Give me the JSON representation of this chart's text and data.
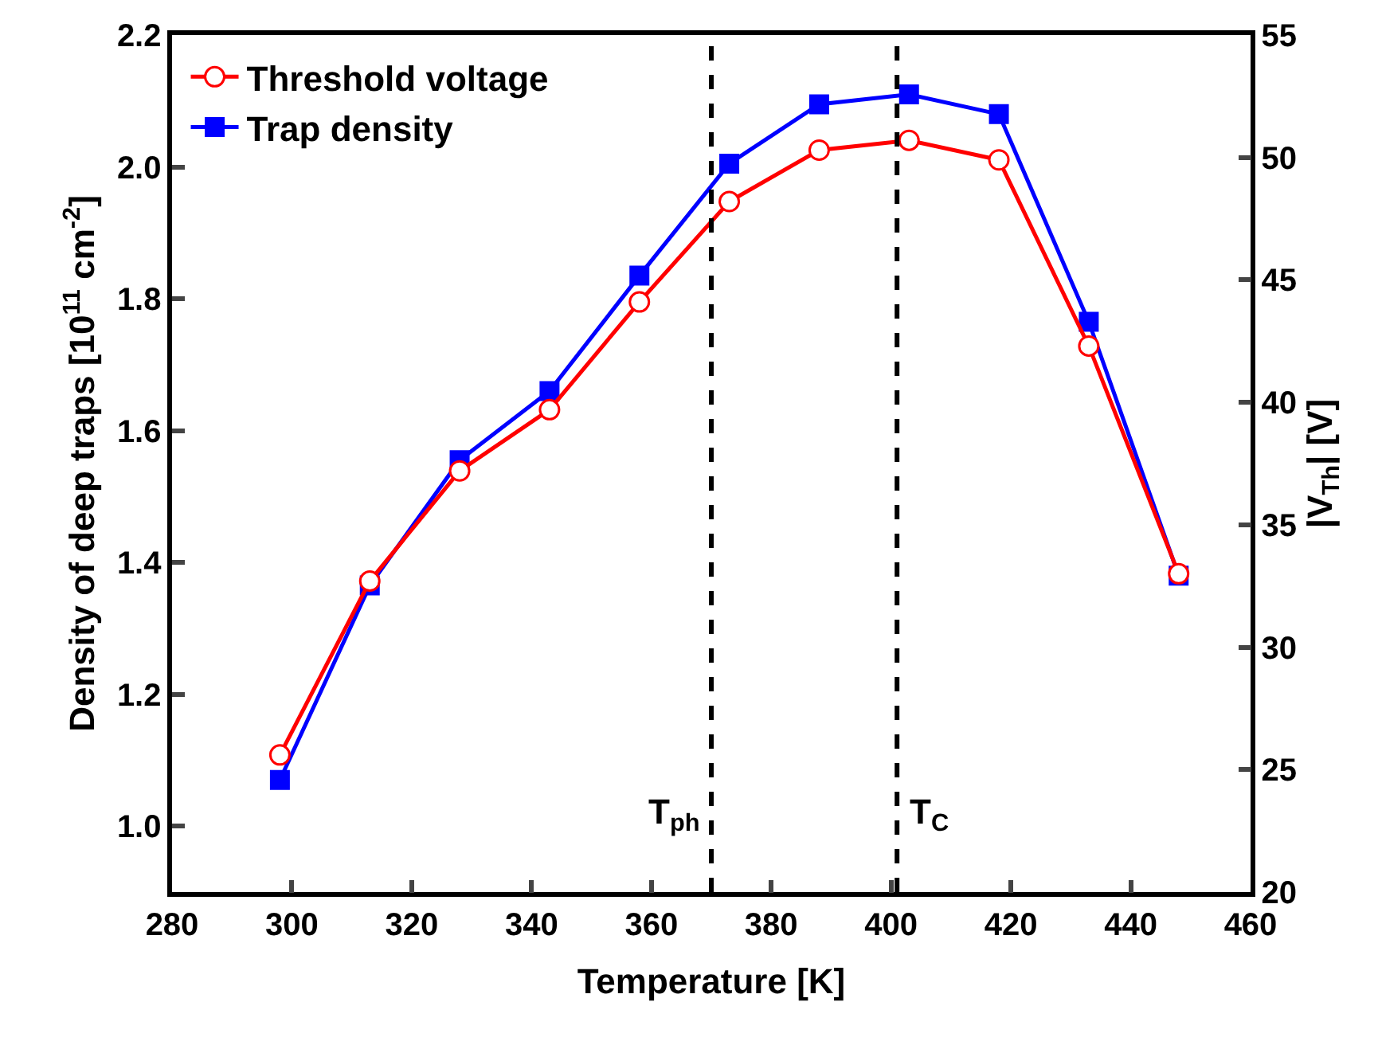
{
  "chart_data": {
    "type": "line",
    "xlabel": "Temperature [K]",
    "ylabel": "Density of deep traps [10$^{11}$ cm$^{-2}$]",
    "y2label": "|V$_{Th}$| [V]",
    "x": [
      298,
      313,
      328,
      343,
      358,
      373,
      388,
      403,
      418,
      433,
      448
    ],
    "series": [
      {
        "name": "Threshold voltage",
        "color": "#ff0000",
        "axis": "y2",
        "marker": "circle",
        "values": [
          25.6,
          32.7,
          37.2,
          39.7,
          44.1,
          48.2,
          50.3,
          50.7,
          49.9,
          42.3,
          33.0
        ]
      },
      {
        "name": "Trap density",
        "color": "#0000ff",
        "marker": "square",
        "values": [
          1.07,
          1.365,
          1.555,
          1.66,
          1.835,
          2.005,
          2.095,
          2.11,
          2.08,
          1.765,
          1.38
        ]
      }
    ],
    "xlim": [
      280,
      460
    ],
    "xticks": [
      280,
      300,
      320,
      340,
      360,
      380,
      400,
      420,
      440,
      460
    ],
    "ylim": [
      0.9,
      2.2
    ],
    "yticks": [
      {
        "value": 1,
        "label": "1.0"
      },
      1.2,
      1.4,
      1.6,
      1.8,
      {
        "value": 2,
        "label": "2.0"
      },
      2.2
    ],
    "y2lim": [
      20,
      55
    ],
    "y2ticks": [
      20,
      25,
      30,
      35,
      40,
      45,
      50,
      55
    ],
    "ref_lines": [
      {
        "axis": "x",
        "value": 370,
        "label": "T$_{ph}$",
        "color": "#000000",
        "line_style": "dashed"
      },
      {
        "axis": "x",
        "value": 401,
        "label": "T$_{C}$",
        "color": "#000000",
        "line_style": "dashed"
      }
    ],
    "legend": "top left",
    "line_style": "solid"
  }
}
